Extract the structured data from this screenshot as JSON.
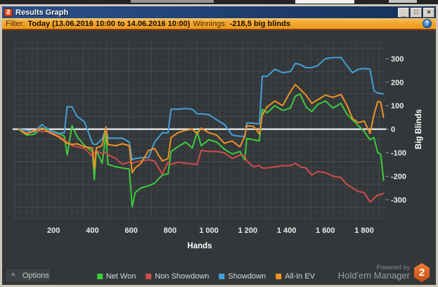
{
  "window": {
    "title": "Results Graph",
    "icon_badge": "2",
    "minimize_glyph": "_",
    "maximize_glyph": "□",
    "close_glyph": "×"
  },
  "filter_bar": {
    "label": "Filter:",
    "range_text": "Today (13.06.2016 10:00 to 14.06.2016 10:00)",
    "winnings_label": "Winnings:",
    "winnings_value": "-218,5 big blinds",
    "help_glyph": "?"
  },
  "footer": {
    "options_label": "Options",
    "options_caret": "^",
    "powered_by": "Powered by",
    "brand": "Hold'em Manager",
    "brand_badge": "2"
  },
  "legend": [
    {
      "label": "Net Won",
      "color": "#3ecb3e"
    },
    {
      "label": "Non Showdown",
      "color": "#d14b4b"
    },
    {
      "label": "Showdown",
      "color": "#42a0d8"
    },
    {
      "label": "All-In EV",
      "color": "#ef9226"
    }
  ],
  "colors": {
    "plot_background": "#333739",
    "grid_minor": "#3d4144",
    "grid_major": "#474b4f",
    "zero_line": "#ffffff",
    "axis_text": "#eaeaea"
  },
  "chart_data": {
    "type": "line",
    "title": "",
    "xlabel": "Hands",
    "ylabel": "Big Blinds",
    "xlim": [
      0,
      1905
    ],
    "ylim": [
      -384,
      367
    ],
    "x_ticks": [
      200,
      400,
      600,
      800,
      1000,
      1200,
      1400,
      1600,
      1800
    ],
    "x_tick_labels": [
      "200",
      "400",
      "600",
      "800",
      "1 000",
      "1 200",
      "1 400",
      "1 600",
      "1 800"
    ],
    "y_ticks": [
      300,
      200,
      100,
      0,
      -100,
      -200,
      -300
    ],
    "y_tick_labels": [
      "300",
      "200",
      "100",
      "0",
      "-100",
      "-200",
      "-300"
    ],
    "x": [
      20,
      60,
      100,
      140,
      180,
      220,
      255,
      270,
      295,
      320,
      360,
      400,
      410,
      420,
      450,
      470,
      480,
      520,
      555,
      590,
      605,
      620,
      650,
      690,
      720,
      760,
      790,
      805,
      840,
      880,
      915,
      940,
      960,
      1000,
      1040,
      1080,
      1120,
      1160,
      1185,
      1195,
      1230,
      1260,
      1275,
      1300,
      1340,
      1380,
      1420,
      1445,
      1470,
      1500,
      1530,
      1560,
      1600,
      1640,
      1680,
      1710,
      1740,
      1770,
      1800,
      1830,
      1850,
      1870,
      1885,
      1900
    ],
    "series": [
      {
        "name": "Net Won",
        "color": "#3ecb3e",
        "values": [
          0,
          -25,
          -22,
          5,
          -5,
          -15,
          -30,
          -110,
          15,
          -30,
          -70,
          -95,
          -215,
          -90,
          -145,
          -20,
          -150,
          -160,
          -165,
          -170,
          -330,
          -270,
          -250,
          -240,
          -230,
          -195,
          -190,
          -95,
          -75,
          -55,
          -80,
          -10,
          -70,
          -45,
          -55,
          -85,
          -105,
          -95,
          -130,
          -40,
          -45,
          -50,
          85,
          70,
          100,
          80,
          90,
          140,
          150,
          95,
          75,
          105,
          120,
          90,
          110,
          65,
          40,
          15,
          -10,
          -45,
          -35,
          -100,
          -105,
          -218
        ]
      },
      {
        "name": "Non Showdown",
        "color": "#d14b4b",
        "values": [
          0,
          -15,
          -5,
          -10,
          -10,
          -25,
          -45,
          -55,
          -70,
          -75,
          -82,
          -115,
          -100,
          -92,
          -105,
          -100,
          -108,
          -125,
          -150,
          -140,
          -145,
          -140,
          -135,
          -130,
          -135,
          -190,
          -140,
          -150,
          -140,
          -145,
          -148,
          -150,
          -90,
          -95,
          -95,
          -100,
          -125,
          -110,
          -112,
          -135,
          -160,
          -155,
          -165,
          -165,
          -160,
          -155,
          -155,
          -145,
          -160,
          -165,
          -195,
          -180,
          -185,
          -200,
          -205,
          -235,
          -250,
          -265,
          -270,
          -310,
          -295,
          -280,
          -278,
          -272
        ]
      },
      {
        "name": "Showdown",
        "color": "#42a0d8",
        "values": [
          0,
          -5,
          -12,
          20,
          -5,
          -18,
          -15,
          95,
          95,
          55,
          30,
          -60,
          -65,
          -65,
          -42,
          5,
          -38,
          -38,
          -38,
          -55,
          -130,
          -125,
          -122,
          -120,
          -55,
          -15,
          -15,
          85,
          85,
          88,
          85,
          65,
          65,
          62,
          40,
          20,
          -25,
          -30,
          -30,
          27,
          25,
          22,
          225,
          225,
          255,
          240,
          245,
          280,
          275,
          262,
          262,
          270,
          300,
          305,
          305,
          272,
          240,
          255,
          258,
          255,
          165,
          153,
          152,
          150
        ]
      },
      {
        "name": "All-In EV",
        "color": "#ef9226",
        "values": [
          0,
          -20,
          -8,
          5,
          -15,
          -30,
          -50,
          -60,
          -65,
          -62,
          -75,
          -80,
          -170,
          -80,
          -70,
          10,
          -65,
          -70,
          -62,
          -70,
          -185,
          -165,
          -145,
          -90,
          -82,
          -135,
          -125,
          -35,
          -15,
          -5,
          0,
          -20,
          5,
          -15,
          -25,
          -60,
          -50,
          -75,
          -30,
          15,
          12,
          -20,
          60,
          95,
          120,
          100,
          160,
          190,
          170,
          145,
          110,
          125,
          145,
          135,
          148,
          104,
          45,
          28,
          35,
          -18,
          60,
          118,
          115,
          50
        ]
      }
    ],
    "zero_line": 0,
    "grid": true,
    "legend_position": "bottom"
  }
}
